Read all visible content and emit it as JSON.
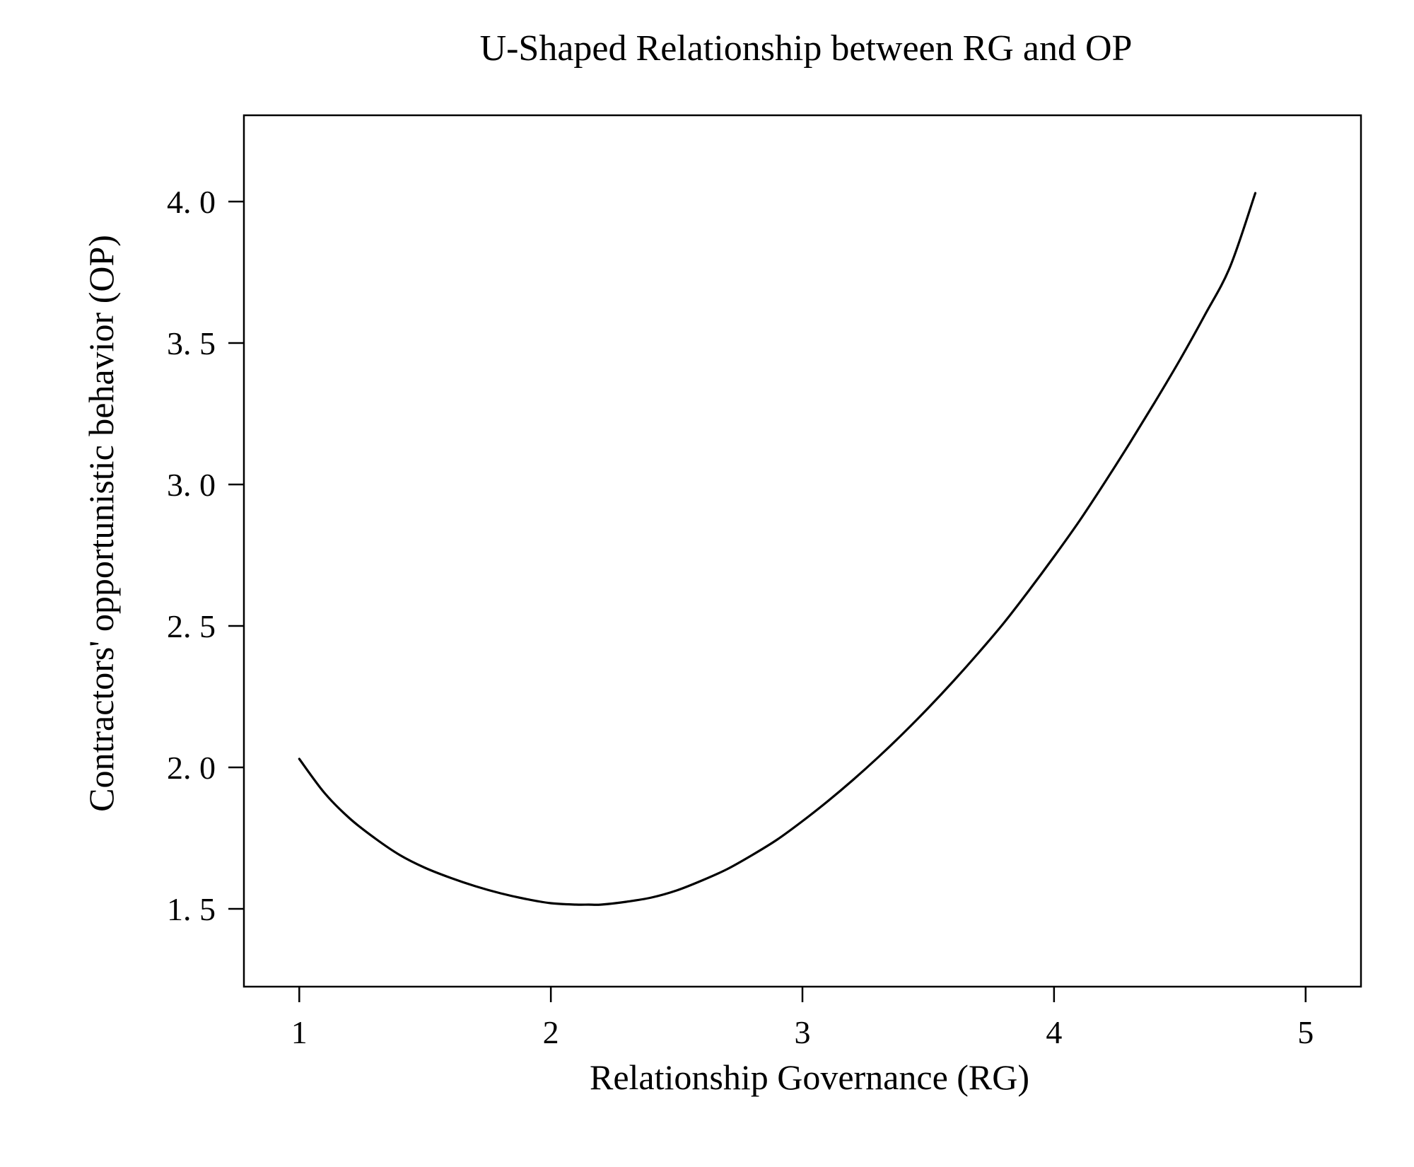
{
  "chart_data": {
    "type": "line",
    "title": "U-Shaped Relationship between RG and OP",
    "xlabel": "Relationship Governance (RG)",
    "ylabel": "Contractors' opportunistic behavior (OP)",
    "xlim": [
      0.78,
      5.22
    ],
    "ylim": [
      1.225,
      4.305
    ],
    "x_ticks": [
      1,
      2,
      3,
      4,
      5
    ],
    "x_tick_labels": [
      "1",
      "2",
      "3",
      "4",
      "5"
    ],
    "y_ticks": [
      1.5,
      2.0,
      2.5,
      3.0,
      3.5,
      4.0
    ],
    "y_tick_labels": [
      "1. 5",
      "2. 0",
      "2. 5",
      "3. 0",
      "3. 5",
      "4. 0"
    ],
    "grid": false,
    "legend": "none",
    "series": [
      {
        "x": [
          1.0,
          1.1,
          1.2,
          1.3,
          1.4,
          1.5,
          1.6,
          1.7,
          1.8,
          1.9,
          2.0,
          2.1,
          2.15,
          2.2,
          2.3,
          2.4,
          2.5,
          2.6,
          2.7,
          2.8,
          2.9,
          3.0,
          3.1,
          3.2,
          3.3,
          3.4,
          3.5,
          3.6,
          3.7,
          3.8,
          3.9,
          4.0,
          4.1,
          4.2,
          4.3,
          4.4,
          4.5,
          4.6,
          4.7,
          4.8
        ],
        "y": [
          2.03,
          1.91,
          1.82,
          1.75,
          1.69,
          1.645,
          1.61,
          1.58,
          1.555,
          1.535,
          1.52,
          1.515,
          1.515,
          1.515,
          1.525,
          1.54,
          1.565,
          1.6,
          1.64,
          1.69,
          1.745,
          1.81,
          1.88,
          1.955,
          2.035,
          2.12,
          2.21,
          2.305,
          2.405,
          2.51,
          2.625,
          2.745,
          2.87,
          3.005,
          3.145,
          3.29,
          3.44,
          3.6,
          3.77,
          4.03
        ],
        "color": "#000000"
      }
    ]
  }
}
